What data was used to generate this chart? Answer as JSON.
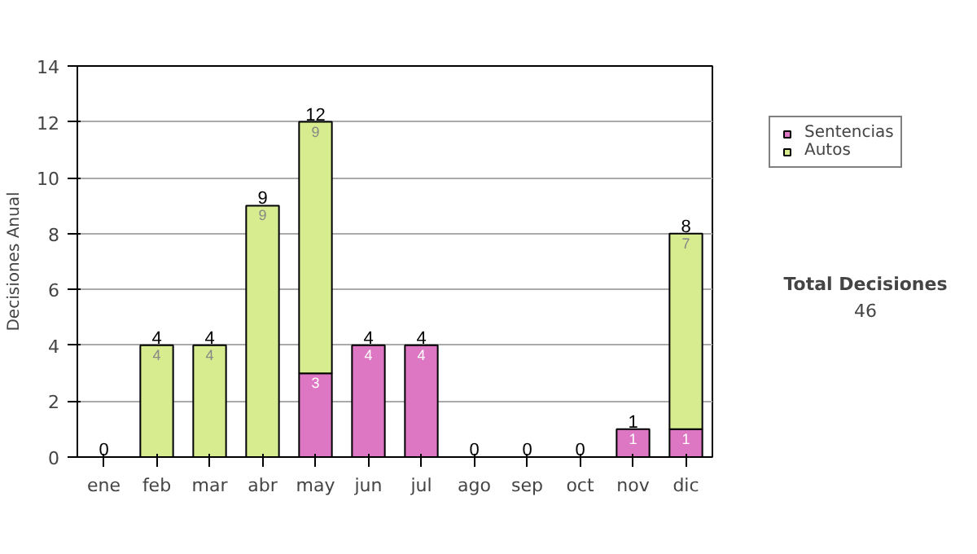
{
  "chart_data": {
    "type": "bar",
    "stacked": true,
    "ylabel": "Decisiones Anual",
    "categories": [
      "ene",
      "feb",
      "mar",
      "abr",
      "may",
      "jun",
      "jul",
      "ago",
      "sep",
      "oct",
      "nov",
      "dic"
    ],
    "series": [
      {
        "name": "Sentencias",
        "color": "#dd77c4",
        "values": [
          0,
          0,
          0,
          0,
          3,
          4,
          4,
          0,
          0,
          0,
          1,
          1
        ],
        "value_labels": [
          null,
          null,
          null,
          null,
          "3",
          "4",
          "4",
          null,
          null,
          null,
          "1",
          "1"
        ]
      },
      {
        "name": "Autos",
        "color": "#d6ec8e",
        "values": [
          0,
          4,
          4,
          9,
          9,
          0,
          0,
          0,
          0,
          0,
          0,
          7
        ],
        "value_labels": [
          null,
          "4",
          "4",
          "9",
          "9",
          null,
          null,
          null,
          null,
          null,
          null,
          "7"
        ]
      }
    ],
    "totals": [
      "0",
      "4",
      "4",
      "9",
      "12",
      "4",
      "4",
      "0",
      "0",
      "0",
      "1",
      "8"
    ],
    "ylim": [
      0,
      14
    ],
    "yticks": [
      0,
      2,
      4,
      6,
      8,
      10,
      12,
      14
    ],
    "grid": "y",
    "legend": "right",
    "annotations": [
      "Total Decisiones",
      "46"
    ]
  }
}
